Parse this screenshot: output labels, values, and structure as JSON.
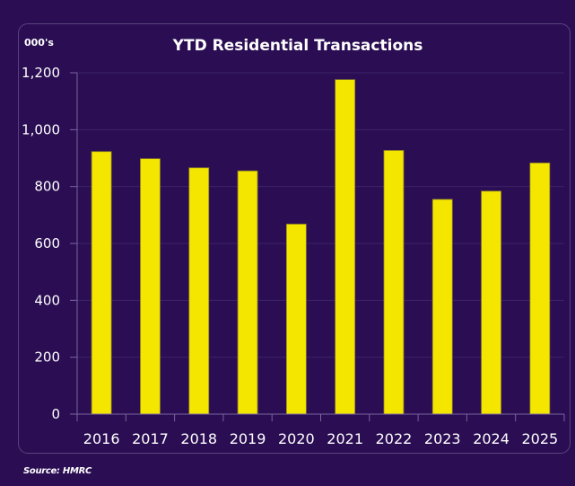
{
  "chart_data": {
    "type": "bar",
    "title": "YTD Residential Transactions",
    "unit_label": "000's",
    "xlabel": "",
    "ylabel": "000's",
    "categories": [
      "2016",
      "2017",
      "2018",
      "2019",
      "2020",
      "2021",
      "2022",
      "2023",
      "2024",
      "2025"
    ],
    "values": [
      923,
      898,
      866,
      855,
      668,
      1176,
      927,
      755,
      784,
      883
    ],
    "ylim": [
      0,
      1200
    ],
    "yticks": [
      0,
      200,
      400,
      600,
      800,
      1000,
      1200
    ],
    "ytick_labels": [
      "0",
      "200",
      "400",
      "600",
      "800",
      "1,000",
      "1,200"
    ],
    "grid": true,
    "legend": "none",
    "colors": {
      "bar": "#f5e600",
      "bar_edge": "#8a7d2a",
      "background": "#2a0d52",
      "grid": "#3d2368",
      "axis": "#7a66a0",
      "text": "#ffffff"
    }
  },
  "source": "Source: HMRC"
}
